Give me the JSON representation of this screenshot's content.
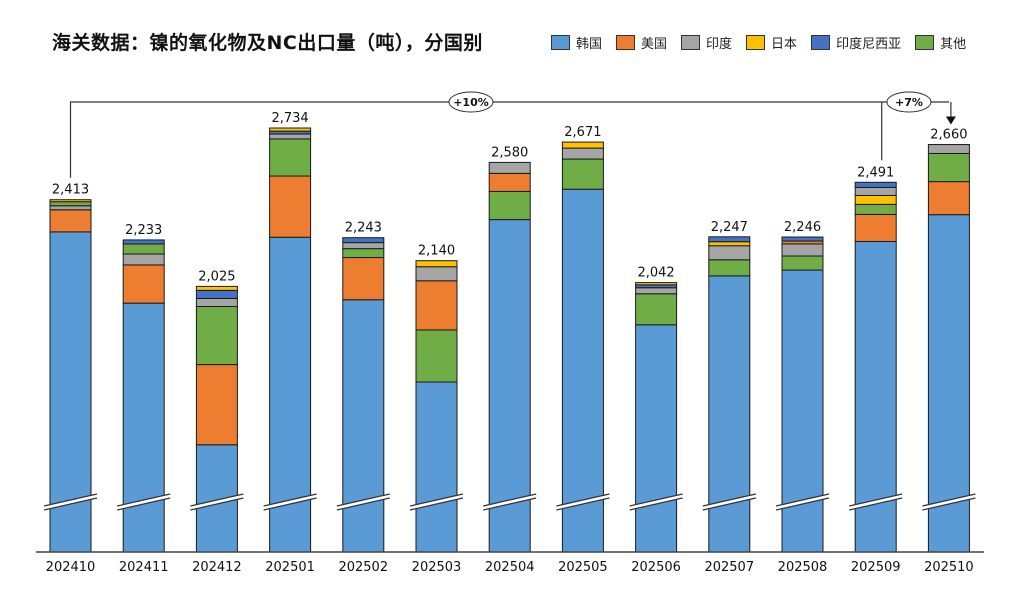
{
  "title": "海关数据：镍的氧化物及NC出口量（吨），分国别",
  "chart_data": {
    "type": "bar",
    "stacked": true,
    "title": "海关数据：镍的氧化物及NC出口量（吨），分国别",
    "xlabel": "",
    "ylabel": "",
    "broken_axis": true,
    "ylim": [
      836,
      2800
    ],
    "grid": false,
    "legend_position": "top-right",
    "categories": [
      "202410",
      "202411",
      "202412",
      "202501",
      "202502",
      "202503",
      "202504",
      "202505",
      "202506",
      "202507",
      "202508",
      "202509",
      "202510"
    ],
    "totals": [
      2413,
      2233,
      2025,
      2734,
      2243,
      2140,
      2580,
      2671,
      2042,
      2247,
      2246,
      2491,
      2660
    ],
    "total_labels": [
      "2,413",
      "2,233",
      "2,025",
      "2,734",
      "2,243",
      "2,140",
      "2,580",
      "2,671",
      "2,042",
      "2,247",
      "2,246",
      "2,491",
      "2,660"
    ],
    "series": [
      {
        "name": "韩国",
        "color": "#5B9BD5",
        "values": [
          2269,
          1950,
          1316,
          2245,
          1965,
          1597,
          2324,
          2460,
          1853,
          2072,
          2098,
          2226,
          2346
        ]
      },
      {
        "name": "美国",
        "color": "#ED7D31",
        "values": [
          99,
          171,
          359,
          274,
          189,
          220,
          81,
          0,
          0,
          0,
          13,
          121,
          148
        ]
      },
      {
        "name": "其他",
        "color": "#70AD47",
        "values": [
          18,
          45,
          260,
          166,
          40,
          233,
          126,
          135,
          139,
          72,
          63,
          45,
          126
        ]
      },
      {
        "name": "日本",
        "color": "#FFC000",
        "values": [
          9,
          0,
          18,
          14,
          0,
          27,
          0,
          27,
          10,
          18,
          0,
          40,
          0
        ]
      },
      {
        "name": "印度",
        "color": "#A5A5A5",
        "values": [
          18,
          49,
          36,
          22,
          27,
          63,
          49,
          49,
          27,
          63,
          54,
          36,
          40
        ]
      },
      {
        "name": "印度尼西亚",
        "color": "#4472C4",
        "values": [
          0,
          18,
          36,
          13,
          22,
          0,
          0,
          0,
          13,
          22,
          18,
          23,
          0
        ]
      }
    ],
    "stack_order_by_bar": [
      [
        "韩国",
        "美国",
        "印度",
        "其他",
        "日本"
      ],
      [
        "韩国",
        "美国",
        "印度",
        "其他",
        "印度尼西亚"
      ],
      [
        "韩国",
        "美国",
        "其他",
        "印度",
        "印度尼西亚",
        "日本"
      ],
      [
        "韩国",
        "美国",
        "其他",
        "印度",
        "印度尼西亚",
        "日本"
      ],
      [
        "韩国",
        "美国",
        "其他",
        "印度",
        "印度尼西亚"
      ],
      [
        "韩国",
        "其他",
        "美国",
        "印度",
        "日本"
      ],
      [
        "韩国",
        "其他",
        "美国",
        "印度"
      ],
      [
        "韩国",
        "其他",
        "印度",
        "日本"
      ],
      [
        "韩国",
        "其他",
        "印度",
        "印度尼西亚",
        "日本"
      ],
      [
        "韩国",
        "其他",
        "印度",
        "日本",
        "印度尼西亚"
      ],
      [
        "韩国",
        "其他",
        "印度",
        "美国",
        "印度尼西亚"
      ],
      [
        "韩国",
        "美国",
        "其他",
        "日本",
        "印度",
        "印度尼西亚"
      ],
      [
        "韩国",
        "美国",
        "其他",
        "印度"
      ]
    ],
    "annotations": [
      {
        "text": "+10%",
        "from": "202410",
        "to": "202509"
      },
      {
        "text": "+7%",
        "from": "202509",
        "to": "202510"
      }
    ]
  },
  "legend": [
    {
      "name": "韩国",
      "color": "#5B9BD5"
    },
    {
      "name": "美国",
      "color": "#ED7D31"
    },
    {
      "name": "印度",
      "color": "#A5A5A5"
    },
    {
      "name": "日本",
      "color": "#FFC000"
    },
    {
      "name": "印度尼西亚",
      "color": "#4472C4"
    },
    {
      "name": "其他",
      "color": "#70AD47"
    }
  ]
}
